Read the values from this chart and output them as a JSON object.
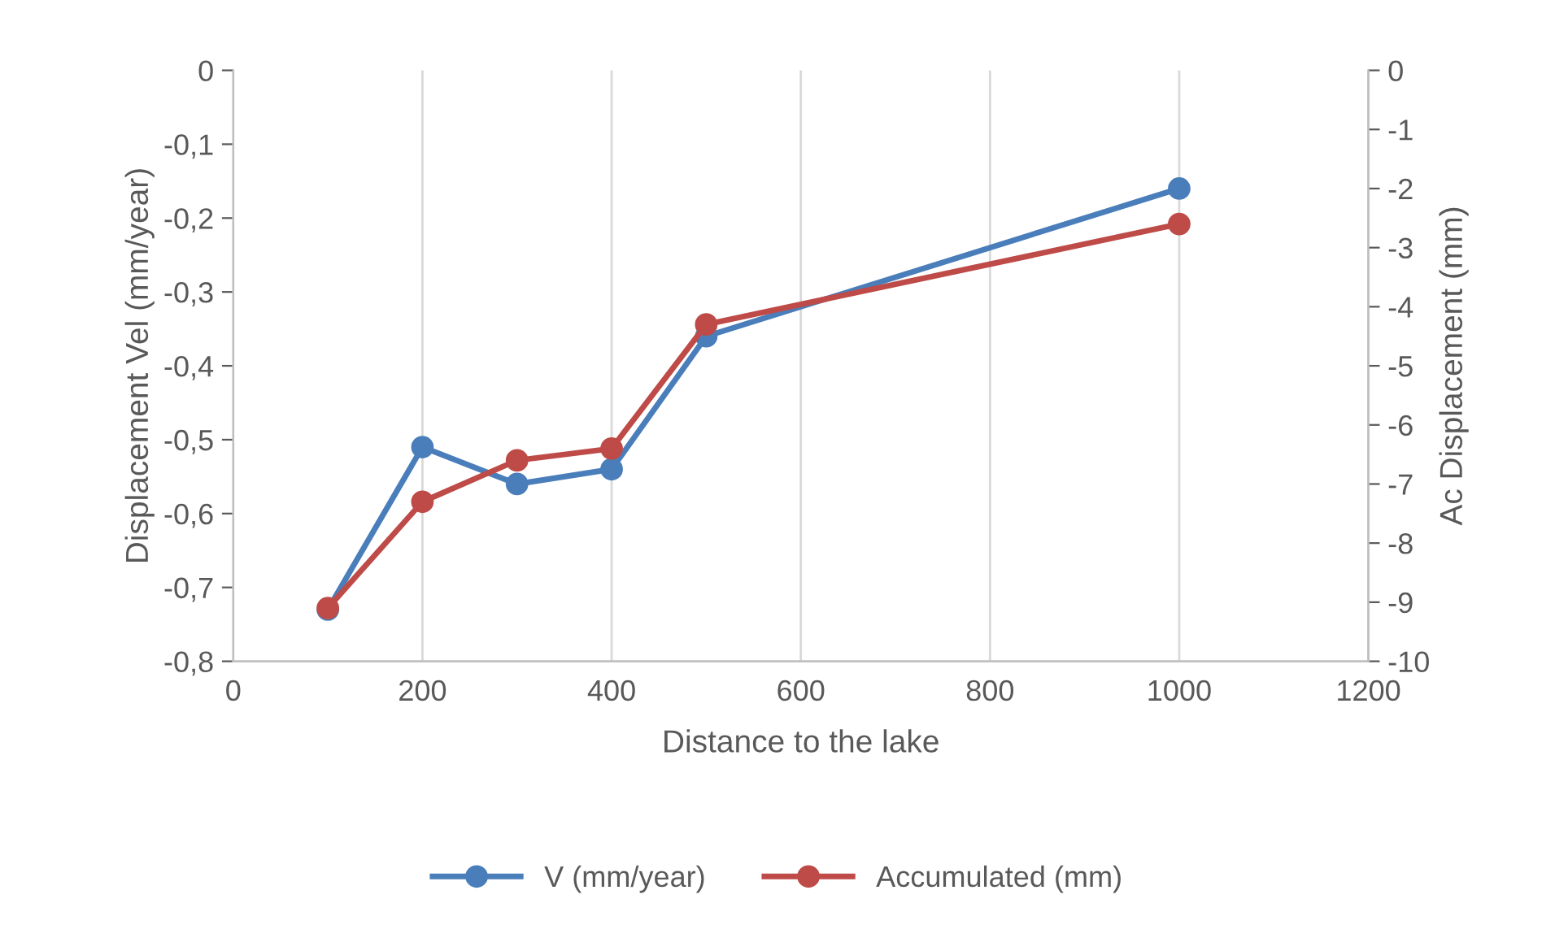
{
  "chart_data": {
    "type": "line",
    "xlabel": "Distance to the lake",
    "ylabel": "Displacement Vel (mm/year)",
    "y2label": "Ac Displacement (mm)",
    "x": [
      100,
      200,
      300,
      400,
      500,
      1000
    ],
    "series": [
      {
        "name": "V (mm/year)",
        "color": "#4a7ebb",
        "values": [
          -0.73,
          -0.51,
          -0.56,
          -0.54,
          -0.36,
          -0.16
        ]
      },
      {
        "name": "Accumulated (mm)",
        "color": "#be4b48",
        "axis": "y2",
        "values": [
          -9.1,
          -7.3,
          -6.6,
          -6.4,
          -4.3,
          -2.6
        ]
      }
    ],
    "xlim": [
      0,
      1200
    ],
    "xticks": [
      0,
      200,
      400,
      600,
      800,
      1000,
      1200
    ],
    "ylim": [
      -0.8,
      0
    ],
    "yticks": [
      {
        "value": -0.8,
        "label": "-0,8"
      },
      {
        "value": -0.7,
        "label": "-0,7"
      },
      {
        "value": -0.6,
        "label": "-0,6"
      },
      {
        "value": -0.5,
        "label": "-0,5"
      },
      {
        "value": -0.4,
        "label": "-0,4"
      },
      {
        "value": -0.3,
        "label": "-0,3"
      },
      {
        "value": -0.2,
        "label": "-0,2"
      },
      {
        "value": -0.1,
        "label": "-0,1"
      },
      0
    ],
    "y2lim": [
      -10,
      0
    ],
    "y2ticks": [
      -10,
      -9,
      -8,
      -7,
      -6,
      -5,
      -4,
      -3,
      -2,
      -1,
      0
    ],
    "grid": "x",
    "legend": "bottom",
    "marker": "circle",
    "line_style": "solid"
  }
}
